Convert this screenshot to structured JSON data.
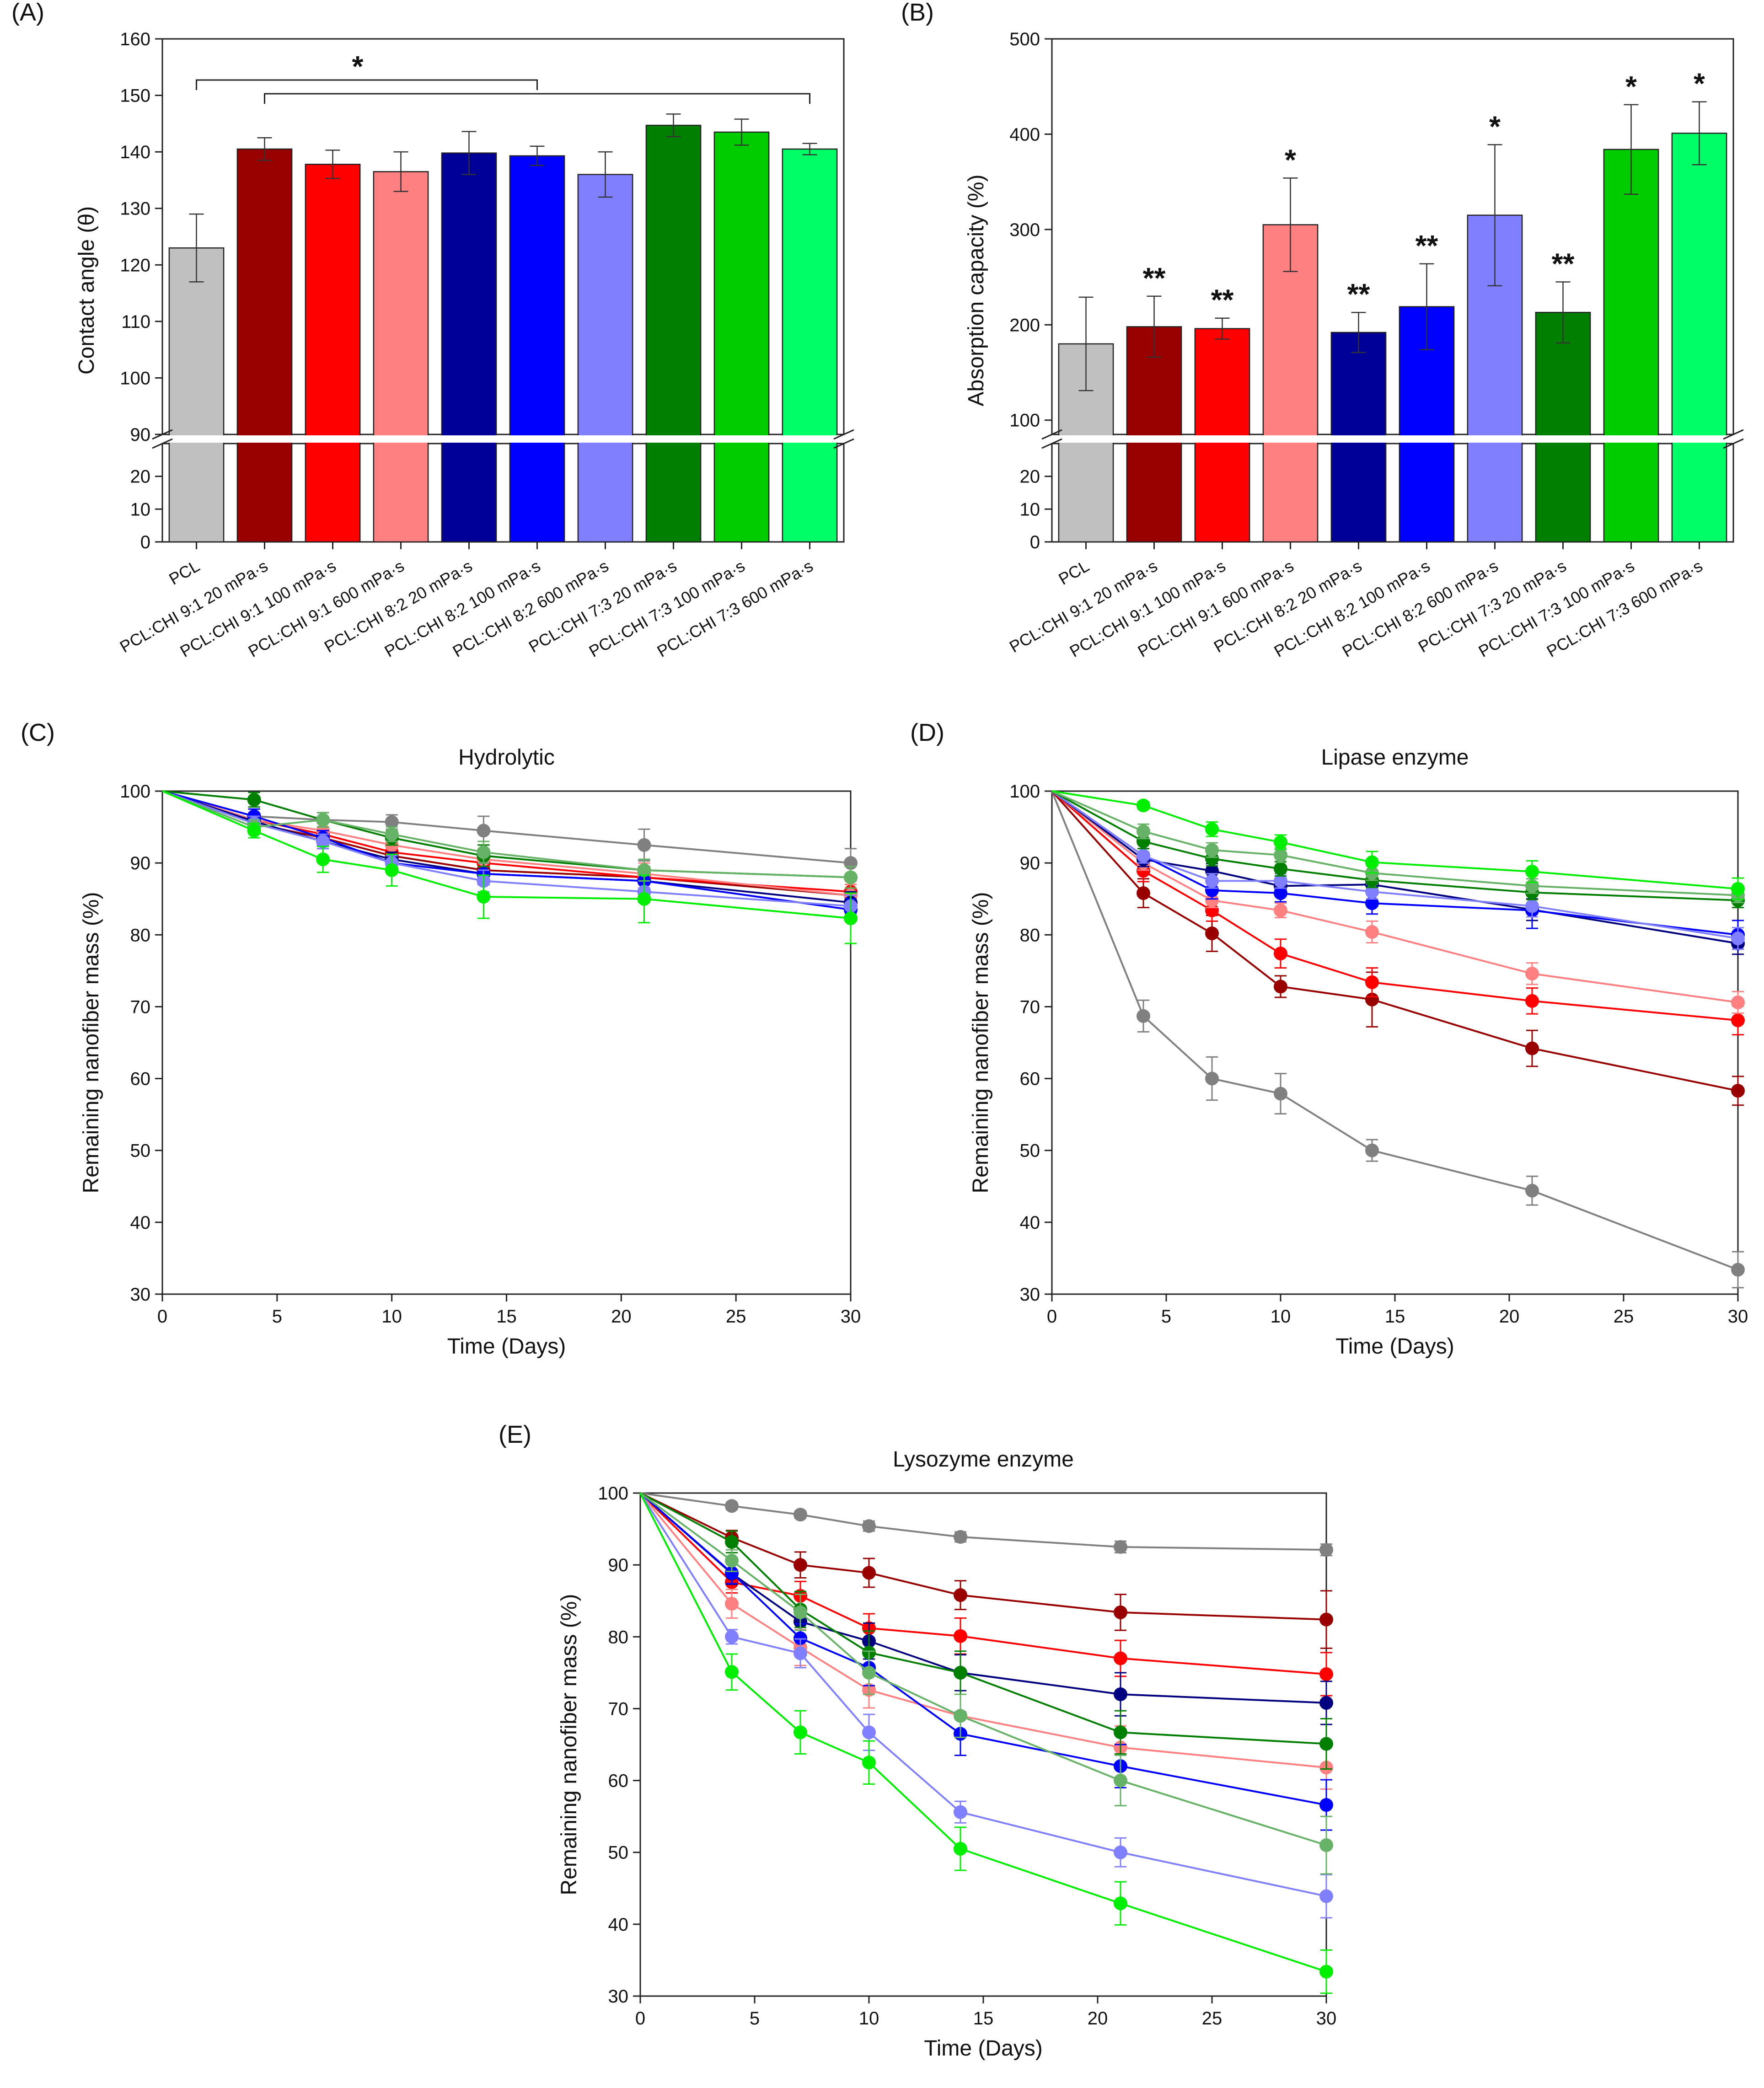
{
  "chart_data": [
    {
      "panel": "(A)",
      "type": "bar",
      "title": "",
      "xlabel": "",
      "ylabel": "Contact angle (θ)",
      "ylim_lower": [
        0,
        30
      ],
      "ylim_upper": [
        90,
        160
      ],
      "yticks_lower": [
        0,
        10,
        20
      ],
      "yticks_upper": [
        90,
        100,
        110,
        120,
        130,
        140,
        150,
        160
      ],
      "categories": [
        "PCL",
        "PCL:CHI 9:1 20 mPa·s",
        "PCL:CHI 9:1 100 mPa·s",
        "PCL:CHI 9:1 600 mPa·s",
        "PCL:CHI 8:2 20 mPa·s",
        "PCL:CHI 8:2 100 mPa·s",
        "PCL:CHI 8:2 600 mPa·s",
        "PCL:CHI 7:3 20 mPa·s",
        "PCL:CHI 7:3 100 mPa·s",
        "PCL:CHI 7:3 600 mPa·s"
      ],
      "values": [
        123,
        140.5,
        137.8,
        136.5,
        139.8,
        139.3,
        136,
        144.7,
        143.5,
        140.5
      ],
      "errors": [
        6,
        2,
        2.5,
        3.5,
        3.8,
        1.7,
        4,
        2,
        2.3,
        1
      ],
      "colors": [
        "#c0c0c0",
        "#990000",
        "#ff0000",
        "#ff8080",
        "#000099",
        "#0000ff",
        "#8080ff",
        "#007f00",
        "#00cc00",
        "#00ff66"
      ],
      "brackets": [
        {
          "from": 0,
          "tos": [
            5,
            9
          ],
          "label": "*"
        }
      ]
    },
    {
      "panel": "(B)",
      "type": "bar",
      "title": "",
      "xlabel": "",
      "ylabel": "Absorption capacity (%)",
      "ylim_lower": [
        0,
        30
      ],
      "ylim_upper": [
        85,
        500
      ],
      "yticks_lower": [
        0,
        10,
        20
      ],
      "yticks_upper": [
        100,
        200,
        300,
        400,
        500
      ],
      "categories": [
        "PCL",
        "PCL:CHI 9:1 20 mPa·s",
        "PCL:CHI 9:1 100 mPa·s",
        "PCL:CHI 9:1 600 mPa·s",
        "PCL:CHI 8:2 20 mPa·s",
        "PCL:CHI 8:2 100 mPa·s",
        "PCL:CHI 8:2 600 mPa·s",
        "PCL:CHI 7:3 20 mPa·s",
        "PCL:CHI 7:3 100 mPa·s",
        "PCL:CHI 7:3 600 mPa·s"
      ],
      "values": [
        180,
        198,
        196,
        305,
        192,
        219,
        315,
        213,
        384,
        401
      ],
      "errors": [
        49,
        32,
        11,
        49,
        21,
        45,
        74,
        32,
        47,
        33
      ],
      "colors": [
        "#c0c0c0",
        "#990000",
        "#ff0000",
        "#ff8080",
        "#000099",
        "#0000ff",
        "#8080ff",
        "#007f00",
        "#00cc00",
        "#00ff66"
      ],
      "significance": [
        "",
        "**",
        "**",
        "*",
        "**",
        "**",
        "*",
        "**",
        "*",
        "*"
      ]
    },
    {
      "panel": "(C)",
      "type": "line",
      "title": "Hydrolytic",
      "xlabel": "Time (Days)",
      "ylabel": "Remaining nanofiber mass (%)",
      "xlim": [
        0,
        30
      ],
      "ylim": [
        30,
        100
      ],
      "xticks": [
        0,
        5,
        10,
        15,
        20,
        25,
        30
      ],
      "yticks": [
        30,
        40,
        50,
        60,
        70,
        80,
        90,
        100
      ],
      "x": [
        0,
        4,
        7,
        10,
        14,
        21,
        30
      ],
      "series": [
        {
          "name": "PCL",
          "color": "#808080",
          "values": [
            100,
            96.5,
            96,
            95.7,
            94.5,
            92.5,
            90
          ],
          "errors": [
            0,
            1,
            1,
            1,
            2,
            2.2,
            2
          ]
        },
        {
          "name": "PCL:CHI 9:1 20 mPa·s",
          "color": "#990000",
          "values": [
            100,
            95.5,
            93.5,
            91,
            89,
            88,
            85.5
          ],
          "errors": [
            0,
            1,
            1,
            1,
            1.5,
            1.5,
            1.5
          ]
        },
        {
          "name": "PCL:CHI 9:1 100 mPa·s",
          "color": "#ff0000",
          "values": [
            100,
            96,
            94,
            91.5,
            90,
            88,
            86
          ],
          "errors": [
            0,
            1,
            1,
            1,
            1.5,
            1.5,
            1.5
          ]
        },
        {
          "name": "PCL:CHI 9:1 600 mPa·s",
          "color": "#ff8080",
          "values": [
            100,
            96,
            94.5,
            92.5,
            90.5,
            88.5,
            85.5
          ],
          "errors": [
            0,
            1,
            1,
            1,
            1.5,
            1.5,
            1.5
          ]
        },
        {
          "name": "PCL:CHI 8:2 20 mPa·s",
          "color": "#000080",
          "values": [
            100,
            95.8,
            93,
            90.5,
            88.5,
            87.5,
            84.5
          ],
          "errors": [
            0,
            1,
            1,
            1,
            1.5,
            1.5,
            1.5
          ]
        },
        {
          "name": "PCL:CHI 8:2 100 mPa·s",
          "color": "#0000ff",
          "values": [
            100,
            96.5,
            93.5,
            90,
            88.5,
            87.5,
            83.5
          ],
          "errors": [
            0,
            1,
            1,
            1,
            1.5,
            1.5,
            1.5
          ]
        },
        {
          "name": "PCL:CHI 8:2 600 mPa·s",
          "color": "#8080ff",
          "values": [
            100,
            95.5,
            93,
            90,
            87.5,
            86,
            84
          ],
          "errors": [
            0,
            1,
            1,
            1,
            1.5,
            1.5,
            1.5
          ]
        },
        {
          "name": "PCL:CHI 7:3 20 mPa·s",
          "color": "#007f00",
          "values": [
            100,
            98.8,
            96,
            93.5,
            91,
            89,
            88
          ],
          "errors": [
            0,
            1,
            1,
            1,
            1.5,
            1.5,
            1.5
          ]
        },
        {
          "name": "PCL:CHI 7:3 100 mPa·s",
          "color": "#66b266",
          "values": [
            100,
            95,
            96,
            94,
            91.5,
            89,
            88
          ],
          "errors": [
            0,
            1,
            1,
            1,
            1.5,
            1.5,
            1.5
          ]
        },
        {
          "name": "PCL:CHI 7:3 600 mPa·s",
          "color": "#00ee00",
          "values": [
            100,
            94.5,
            90.5,
            89,
            85.3,
            85,
            82.3
          ],
          "errors": [
            0,
            1,
            1.8,
            2.2,
            3,
            3.3,
            3.5
          ]
        }
      ]
    },
    {
      "panel": "(D)",
      "type": "line",
      "title": "Lipase enzyme",
      "xlabel": "Time (Days)",
      "ylabel": "Remaining nanofiber mass (%)",
      "xlim": [
        0,
        30
      ],
      "ylim": [
        30,
        100
      ],
      "xticks": [
        0,
        5,
        10,
        15,
        20,
        25,
        30
      ],
      "yticks": [
        30,
        40,
        50,
        60,
        70,
        80,
        90,
        100
      ],
      "x": [
        0,
        4,
        7,
        10,
        14,
        21,
        30
      ],
      "series": [
        {
          "name": "PCL",
          "color": "#808080",
          "values": [
            100,
            68.7,
            60,
            57.9,
            50,
            44.4,
            33.4
          ],
          "errors": [
            0,
            2.2,
            3,
            2.8,
            1.5,
            2,
            2.5
          ]
        },
        {
          "name": "PCL:CHI 9:1 20 mPa·s",
          "color": "#990000",
          "values": [
            100,
            85.8,
            80.2,
            72.8,
            71,
            64.2,
            58.3
          ],
          "errors": [
            0,
            2,
            2.5,
            1.5,
            3.8,
            2.5,
            2
          ]
        },
        {
          "name": "PCL:CHI 9:1 100 mPa·s",
          "color": "#ff0000",
          "values": [
            100,
            88.9,
            83.4,
            77.4,
            73.4,
            70.8,
            68.1
          ],
          "errors": [
            0,
            1.5,
            1.5,
            2,
            2,
            1.8,
            2
          ]
        },
        {
          "name": "PCL:CHI 9:1 600 mPa·s",
          "color": "#ff8080",
          "values": [
            100,
            90,
            84.8,
            83.4,
            80.4,
            74.6,
            70.6
          ],
          "errors": [
            0,
            1,
            1,
            1,
            1.5,
            1.5,
            1.5
          ]
        },
        {
          "name": "PCL:CHI 8:2 20 mPa·s",
          "color": "#000080",
          "values": [
            100,
            90.5,
            88.9,
            86.8,
            87,
            83.5,
            78.8
          ],
          "errors": [
            0,
            1,
            1,
            1,
            1,
            1.5,
            1.5
          ]
        },
        {
          "name": "PCL:CHI 8:2 100 mPa·s",
          "color": "#0000ff",
          "values": [
            100,
            91,
            86.2,
            85.8,
            84.4,
            83.4,
            80
          ],
          "errors": [
            0,
            1,
            1.2,
            1.2,
            1.5,
            2.5,
            2
          ]
        },
        {
          "name": "PCL:CHI 8:2 600 mPa·s",
          "color": "#8080ff",
          "values": [
            100,
            91,
            87.5,
            87.5,
            86,
            84,
            79.5
          ],
          "errors": [
            0,
            1,
            1,
            1,
            1,
            1.5,
            1.5
          ]
        },
        {
          "name": "PCL:CHI 7:3 20 mPa·s",
          "color": "#007f00",
          "values": [
            100,
            93,
            90.6,
            89.2,
            87.6,
            85.9,
            84.8
          ],
          "errors": [
            0,
            1,
            1,
            1,
            1,
            1,
            1
          ]
        },
        {
          "name": "PCL:CHI 7:3 100 mPa·s",
          "color": "#66b266",
          "values": [
            100,
            94.4,
            91.8,
            91.1,
            88.6,
            86.8,
            85.5
          ],
          "errors": [
            0,
            1,
            1,
            1,
            1,
            1,
            1
          ]
        },
        {
          "name": "PCL:CHI 7:3 600 mPa·s",
          "color": "#00ee00",
          "values": [
            100,
            98,
            94.7,
            92.9,
            90.1,
            88.8,
            86.4
          ],
          "errors": [
            0,
            0.5,
            1,
            1,
            1.5,
            1.5,
            1.5
          ]
        }
      ]
    },
    {
      "panel": "(E)",
      "type": "line",
      "title": "Lysozyme enzyme",
      "xlabel": "Time (Days)",
      "ylabel": "Remaining nanofiber mass (%)",
      "xlim": [
        0,
        30
      ],
      "ylim": [
        30,
        100
      ],
      "xticks": [
        0,
        5,
        10,
        15,
        20,
        25,
        30
      ],
      "yticks": [
        30,
        40,
        50,
        60,
        70,
        80,
        90,
        100
      ],
      "x": [
        0,
        4,
        7,
        10,
        14,
        21,
        30
      ],
      "series": [
        {
          "name": "PCL",
          "color": "#808080",
          "values": [
            100,
            98.2,
            97,
            95.4,
            93.9,
            92.5,
            92.1
          ],
          "errors": [
            0,
            0.5,
            0.5,
            0.7,
            0.7,
            0.8,
            0.8
          ]
        },
        {
          "name": "PCL:CHI 9:1 20 mPa·s",
          "color": "#990000",
          "values": [
            100,
            93.8,
            90,
            88.9,
            85.8,
            83.4,
            82.4
          ],
          "errors": [
            0,
            1,
            1.8,
            2,
            2,
            2.5,
            4
          ]
        },
        {
          "name": "PCL:CHI 9:1 100 mPa·s",
          "color": "#ff0000",
          "values": [
            100,
            87.6,
            85.7,
            81.2,
            80.1,
            77,
            74.8
          ],
          "errors": [
            0,
            1.5,
            2,
            2,
            2.5,
            2.5,
            3
          ]
        },
        {
          "name": "PCL:CHI 9:1 600 mPa·s",
          "color": "#ff8080",
          "values": [
            100,
            84.6,
            78.5,
            72.6,
            69,
            64.6,
            61.8
          ],
          "errors": [
            0,
            2,
            2.5,
            2.5,
            3,
            3,
            3
          ]
        },
        {
          "name": "PCL:CHI 8:2 20 mPa·s",
          "color": "#000080",
          "values": [
            100,
            88.8,
            82.1,
            79.4,
            75,
            72,
            70.8
          ],
          "errors": [
            0,
            1.5,
            2,
            2.5,
            2.5,
            3,
            3
          ]
        },
        {
          "name": "PCL:CHI 8:2 100 mPa·s",
          "color": "#0000ff",
          "values": [
            100,
            88.9,
            79.8,
            75.7,
            66.5,
            62,
            56.6
          ],
          "errors": [
            0,
            1.5,
            2,
            2.5,
            3,
            3,
            3.5
          ]
        },
        {
          "name": "PCL:CHI 8:2 600 mPa·s",
          "color": "#8080ff",
          "values": [
            100,
            80,
            77.7,
            66.7,
            55.6,
            50,
            43.9
          ],
          "errors": [
            0,
            1,
            2,
            2.5,
            1.5,
            2,
            3
          ]
        },
        {
          "name": "PCL:CHI 7:3 20 mPa·s",
          "color": "#007f00",
          "values": [
            100,
            93.2,
            83.8,
            77.8,
            75,
            66.7,
            65.1
          ],
          "errors": [
            0,
            1.5,
            2.5,
            3,
            3,
            3,
            3.5
          ]
        },
        {
          "name": "PCL:CHI 7:3 100 mPa·s",
          "color": "#66b266",
          "values": [
            100,
            90.6,
            83.4,
            75,
            69,
            60,
            51
          ],
          "errors": [
            0,
            1.5,
            2.5,
            3,
            3,
            3.5,
            4
          ]
        },
        {
          "name": "PCL:CHI 7:3 600 mPa·s",
          "color": "#00ee00",
          "values": [
            100,
            75.1,
            66.7,
            62.5,
            50.5,
            42.9,
            33.4
          ],
          "errors": [
            0,
            2.5,
            3,
            3,
            3,
            3,
            3
          ]
        }
      ]
    }
  ]
}
